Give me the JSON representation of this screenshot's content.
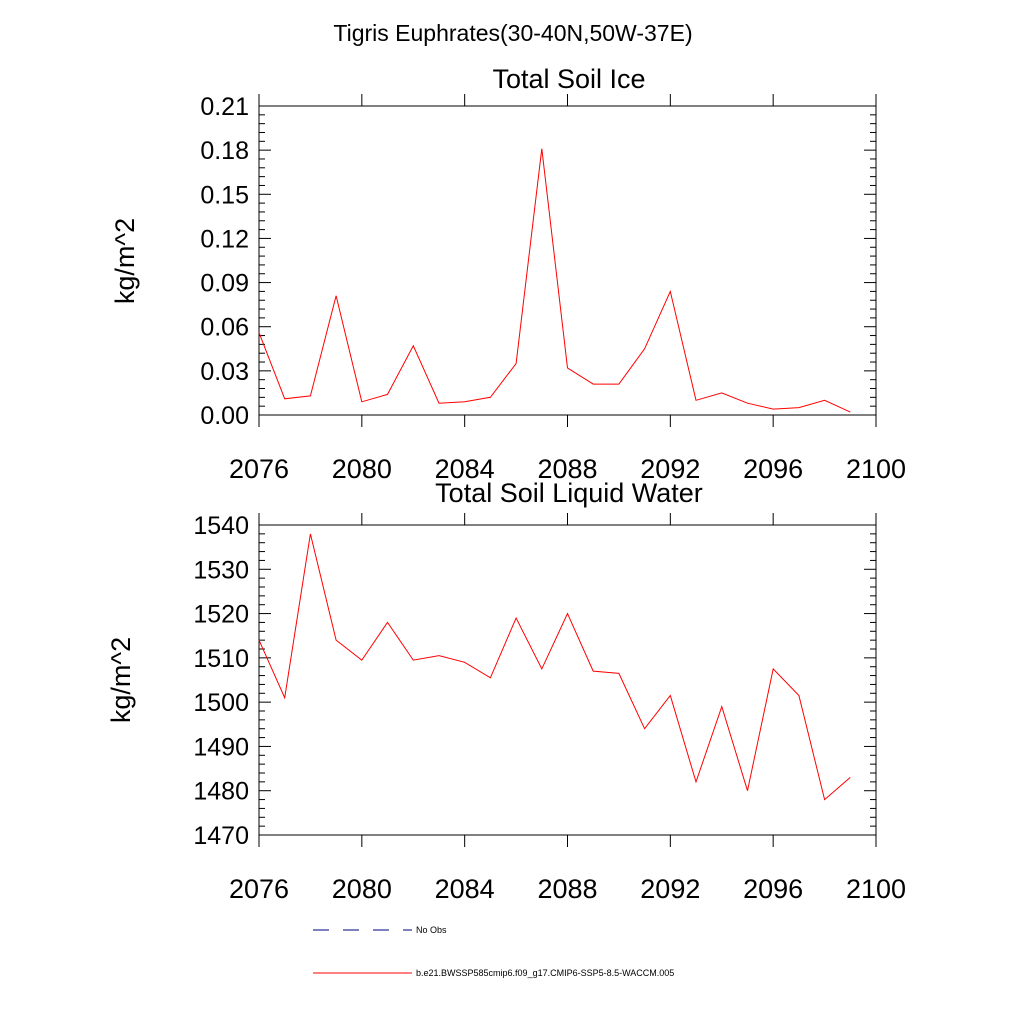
{
  "figure": {
    "title": "Tigris Euphrates(30-40N,50W-37E)"
  },
  "legend": {
    "items": [
      {
        "label": "No Obs",
        "color": "#000080",
        "dash": "dashed"
      },
      {
        "label": "b.e21.BWSSP585cmip6.f09_g17.CMIP6-SSP5-8.5-WACCM.005",
        "color": "#ff0000",
        "dash": "solid"
      }
    ]
  },
  "chart_data": [
    {
      "type": "line",
      "title": "Total Soil Ice",
      "ylabel": "kg/m^2",
      "xlabel": "",
      "xlim": [
        2076,
        2100
      ],
      "ylim": [
        0,
        0.21
      ],
      "xticks": [
        2076,
        2080,
        2084,
        2088,
        2092,
        2096,
        2100
      ],
      "yticks": [
        "0.00",
        "0.03",
        "0.06",
        "0.09",
        "0.12",
        "0.15",
        "0.18",
        "0.21"
      ],
      "yticks_values": [
        0,
        0.03,
        0.06,
        0.09,
        0.12,
        0.15,
        0.18,
        0.21
      ],
      "grid": false,
      "color": "#ff0000",
      "x": [
        2076,
        2077,
        2078,
        2079,
        2080,
        2081,
        2082,
        2083,
        2084,
        2085,
        2086,
        2087,
        2088,
        2089,
        2090,
        2091,
        2092,
        2093,
        2094,
        2095,
        2096,
        2097,
        2098,
        2099
      ],
      "values": [
        0.056,
        0.011,
        0.013,
        0.081,
        0.009,
        0.014,
        0.047,
        0.008,
        0.009,
        0.012,
        0.035,
        0.181,
        0.032,
        0.021,
        0.021,
        0.045,
        0.084,
        0.01,
        0.015,
        0.008,
        0.004,
        0.005,
        0.01,
        0.002
      ]
    },
    {
      "type": "line",
      "title": "Total Soil Liquid Water",
      "ylabel": "kg/m^2",
      "xlabel": "",
      "xlim": [
        2076,
        2100
      ],
      "ylim": [
        1470,
        1540
      ],
      "xticks": [
        2076,
        2080,
        2084,
        2088,
        2092,
        2096,
        2100
      ],
      "yticks": [
        "1470",
        "1480",
        "1490",
        "1500",
        "1510",
        "1520",
        "1530",
        "1540"
      ],
      "yticks_values": [
        1470,
        1480,
        1490,
        1500,
        1510,
        1520,
        1530,
        1540
      ],
      "grid": false,
      "color": "#ff0000",
      "x": [
        2076,
        2077,
        2078,
        2079,
        2080,
        2081,
        2082,
        2083,
        2084,
        2085,
        2086,
        2087,
        2088,
        2089,
        2090,
        2091,
        2092,
        2093,
        2094,
        2095,
        2096,
        2097,
        2098,
        2099
      ],
      "values": [
        1514,
        1501,
        1538,
        1514,
        1509.5,
        1518,
        1509.5,
        1510.5,
        1509,
        1505.5,
        1519,
        1507.5,
        1520,
        1507,
        1506.5,
        1494,
        1501.5,
        1482,
        1499,
        1480,
        1507.5,
        1501.5,
        1478,
        1483
      ]
    }
  ]
}
